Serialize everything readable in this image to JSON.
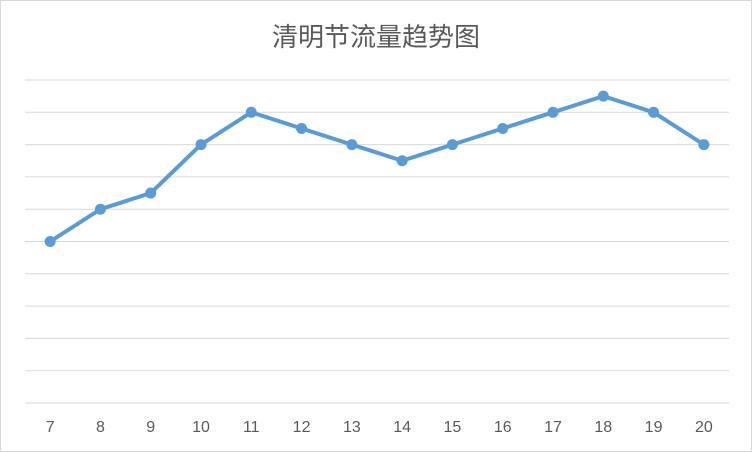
{
  "chart_data": {
    "type": "line",
    "title": "清明节流量趋势图",
    "x": [
      "7",
      "8",
      "9",
      "10",
      "11",
      "12",
      "13",
      "14",
      "15",
      "16",
      "17",
      "18",
      "19",
      "20"
    ],
    "series": [
      {
        "values": [
          5.0,
          6.0,
          6.5,
          8.0,
          9.0,
          8.5,
          8.0,
          7.5,
          8.0,
          8.5,
          9.0,
          9.5,
          9.0,
          8.0
        ]
      }
    ],
    "ylim": [
      0,
      10
    ],
    "y_tick_count": 10,
    "y_tick_labels_visible": false,
    "grid": "horizontal",
    "line_color": "#5b9bd5",
    "grid_color": "#d9d9d9",
    "text_color": "#595959"
  }
}
